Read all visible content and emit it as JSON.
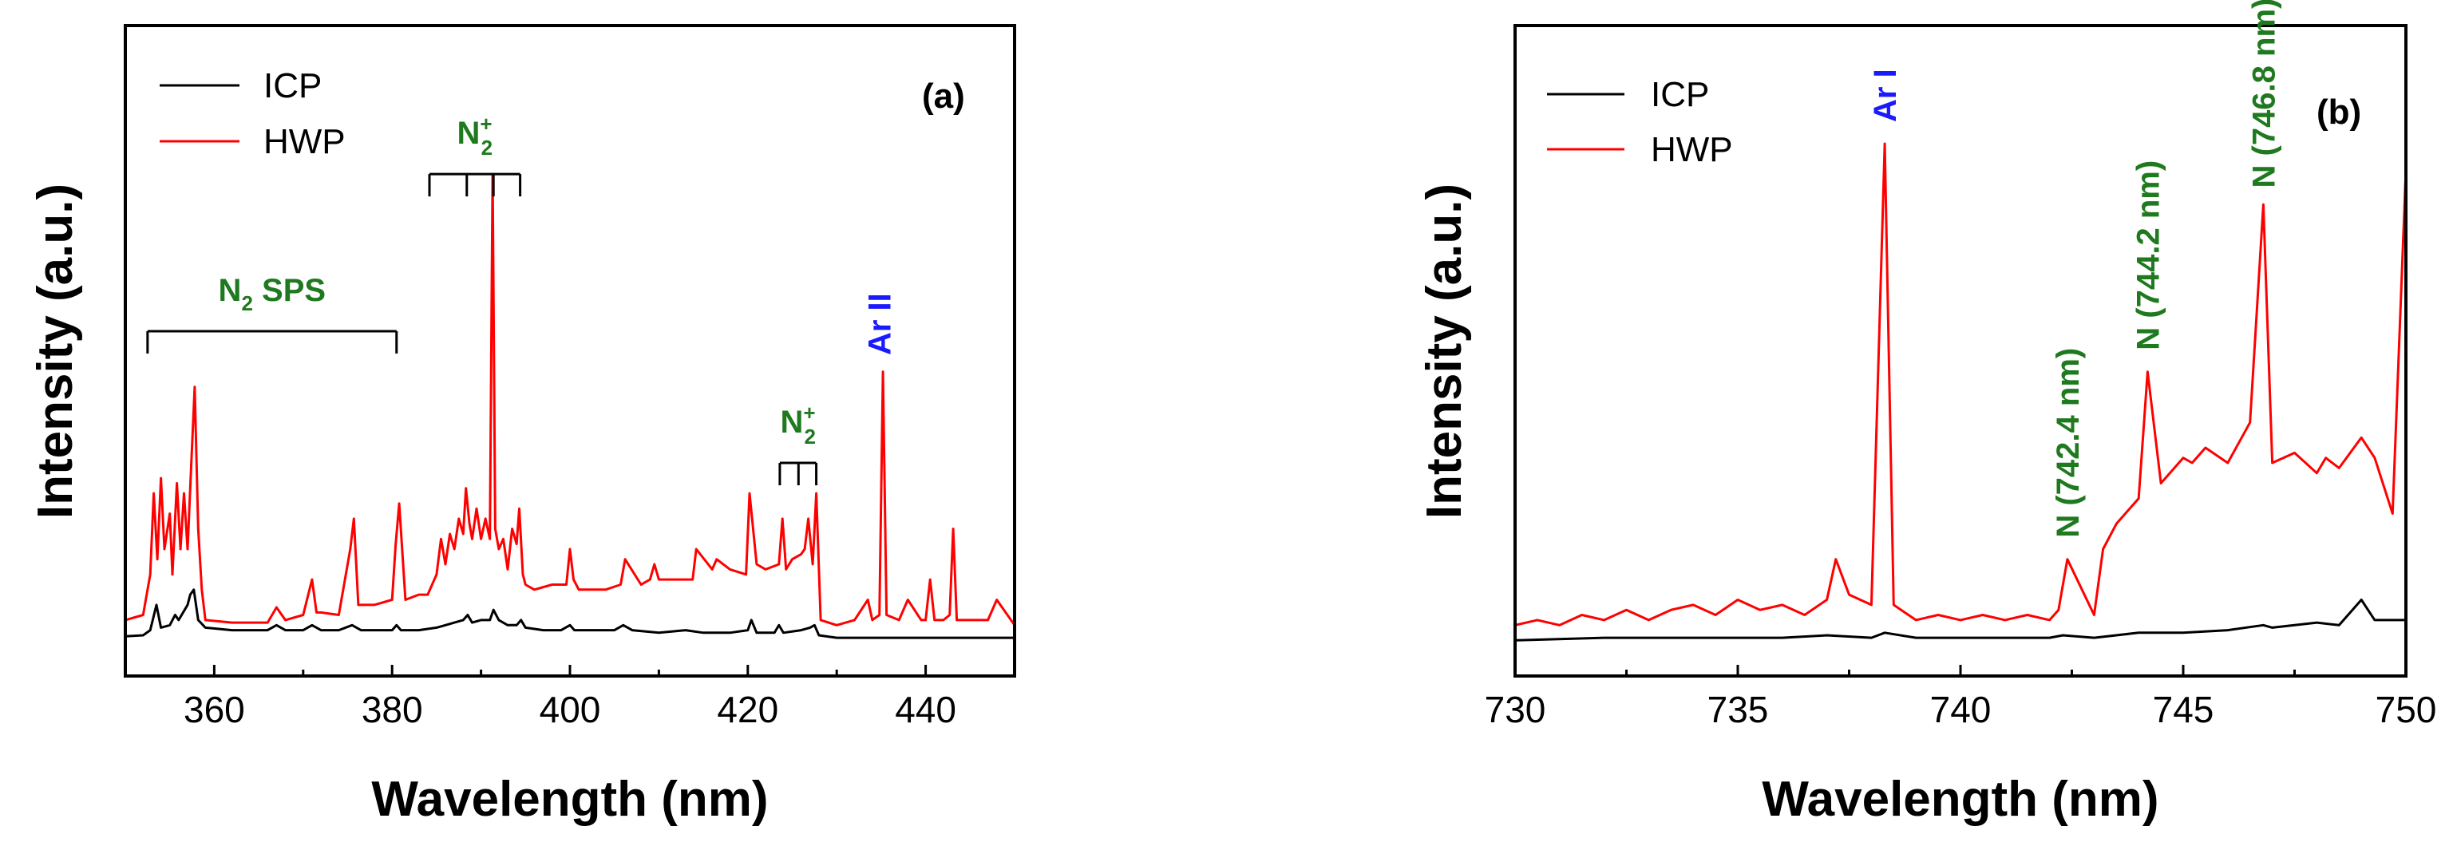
{
  "colors": {
    "icp": "#000000",
    "hwp": "#ff0000",
    "annotation_green": "#1f7a1f",
    "annotation_blue": "#1a1aff"
  },
  "chart_data": [
    {
      "type": "line",
      "panel_label": "(a)",
      "xlabel": "Wavelength (nm)",
      "ylabel": "Intensity (a.u.)",
      "xlim": [
        350,
        450
      ],
      "ylim": [
        0,
        1
      ],
      "x_ticks": [
        360,
        380,
        400,
        420,
        440
      ],
      "y_ticks_shown": false,
      "legend": {
        "position": "top-left",
        "entries": [
          "ICP",
          "HWP"
        ]
      },
      "series": [
        {
          "name": "ICP",
          "x": [
            350,
            352,
            352.8,
            353.5,
            354,
            355,
            355.6,
            356,
            356.5,
            357,
            357.3,
            357.7,
            358.2,
            359,
            362,
            366,
            367,
            368,
            370,
            371,
            372,
            374,
            375.5,
            376.5,
            378,
            380,
            380.5,
            381,
            383,
            385,
            386,
            387,
            388,
            388.5,
            389,
            390,
            391,
            391.4,
            392,
            393,
            394,
            394.5,
            395,
            397,
            399,
            400,
            400.5,
            402,
            405,
            406,
            407,
            410,
            413,
            415,
            418,
            420,
            420.4,
            421,
            423,
            423.5,
            424,
            426,
            427,
            427.5,
            428,
            430,
            435,
            440,
            445,
            450
          ],
          "values": [
            0.028,
            0.03,
            0.04,
            0.09,
            0.045,
            0.05,
            0.07,
            0.06,
            0.075,
            0.09,
            0.11,
            0.12,
            0.06,
            0.045,
            0.04,
            0.04,
            0.05,
            0.04,
            0.04,
            0.05,
            0.04,
            0.04,
            0.05,
            0.04,
            0.04,
            0.04,
            0.05,
            0.04,
            0.04,
            0.045,
            0.05,
            0.055,
            0.06,
            0.07,
            0.055,
            0.06,
            0.06,
            0.08,
            0.06,
            0.05,
            0.05,
            0.06,
            0.045,
            0.04,
            0.04,
            0.05,
            0.04,
            0.04,
            0.04,
            0.05,
            0.04,
            0.035,
            0.04,
            0.035,
            0.035,
            0.04,
            0.06,
            0.035,
            0.035,
            0.05,
            0.035,
            0.04,
            0.045,
            0.05,
            0.03,
            0.025,
            0.025,
            0.025,
            0.025,
            0.025
          ]
        },
        {
          "name": "HWP",
          "x": [
            350,
            352,
            352.8,
            353.2,
            353.6,
            354,
            354.4,
            355,
            355.3,
            355.8,
            356.2,
            356.6,
            357,
            357.4,
            357.8,
            358.2,
            358.6,
            359,
            362,
            366,
            367,
            368,
            370,
            371,
            371.5,
            372,
            374,
            375.3,
            375.7,
            376.2,
            378,
            380,
            380.4,
            380.8,
            381.5,
            383,
            384,
            385,
            385.5,
            386,
            386.5,
            387,
            387.5,
            388,
            388.3,
            388.7,
            389,
            389.5,
            390,
            390.5,
            391,
            391.3,
            391.6,
            392,
            392.5,
            393,
            393.5,
            394,
            394.3,
            394.7,
            395,
            396,
            398,
            399.6,
            400,
            400.4,
            401,
            404,
            405.7,
            406.2,
            408,
            409,
            409.5,
            410,
            412,
            413.8,
            414.2,
            416,
            416.5,
            418,
            419.8,
            420.2,
            421,
            422,
            423.5,
            423.9,
            424.3,
            425,
            426,
            426.4,
            426.8,
            427.3,
            427.7,
            428.2,
            430,
            432,
            433.5,
            434,
            434.8,
            435.2,
            435.6,
            437,
            438,
            439.5,
            440,
            440.5,
            441,
            442,
            442.7,
            443.1,
            443.5,
            445,
            447,
            448,
            450
          ],
          "values": [
            0.06,
            0.07,
            0.15,
            0.31,
            0.18,
            0.34,
            0.2,
            0.27,
            0.15,
            0.33,
            0.2,
            0.31,
            0.2,
            0.36,
            0.52,
            0.24,
            0.12,
            0.06,
            0.055,
            0.055,
            0.085,
            0.06,
            0.07,
            0.14,
            0.075,
            0.075,
            0.07,
            0.2,
            0.26,
            0.09,
            0.09,
            0.1,
            0.21,
            0.29,
            0.1,
            0.11,
            0.11,
            0.15,
            0.22,
            0.17,
            0.23,
            0.2,
            0.26,
            0.23,
            0.32,
            0.25,
            0.22,
            0.28,
            0.22,
            0.26,
            0.22,
            0.94,
            0.24,
            0.2,
            0.22,
            0.16,
            0.24,
            0.21,
            0.28,
            0.15,
            0.13,
            0.12,
            0.13,
            0.13,
            0.2,
            0.14,
            0.12,
            0.12,
            0.13,
            0.18,
            0.13,
            0.14,
            0.17,
            0.14,
            0.14,
            0.14,
            0.2,
            0.16,
            0.18,
            0.16,
            0.15,
            0.31,
            0.17,
            0.16,
            0.17,
            0.26,
            0.16,
            0.18,
            0.19,
            0.2,
            0.26,
            0.17,
            0.31,
            0.06,
            0.05,
            0.06,
            0.1,
            0.06,
            0.07,
            0.55,
            0.07,
            0.06,
            0.1,
            0.06,
            0.06,
            0.14,
            0.06,
            0.06,
            0.07,
            0.24,
            0.06,
            0.06,
            0.06,
            0.1,
            0.05
          ]
        }
      ],
      "annotations": [
        {
          "text": "N",
          "sub": "2",
          "suffix": " SPS",
          "color": "green",
          "bracket_x": [
            352.5,
            380.5
          ],
          "ticks_at": [
            352.5,
            380.5
          ],
          "bracket_y": 0.63
        },
        {
          "text": "N",
          "sub": "2",
          "sup": "+",
          "color": "green",
          "bracket_x": [
            384.2,
            394.4
          ],
          "ticks_at": [
            384.2,
            388.4,
            391.4,
            394.4
          ],
          "bracket_y": 0.94
        },
        {
          "text": "N",
          "sub": "2",
          "sup": "+",
          "color": "green",
          "bracket_x": [
            423.6,
            427.7
          ],
          "ticks_at": [
            423.6,
            425.7,
            427.7
          ],
          "bracket_y": 0.37
        },
        {
          "text": "Ar II",
          "color": "blue",
          "x": 434.8,
          "y": 0.57,
          "vertical": true
        }
      ]
    },
    {
      "type": "line",
      "panel_label": "(b)",
      "xlabel": "Wavelength (nm)",
      "ylabel": "Intensity (a.u.)",
      "xlim": [
        730,
        750
      ],
      "ylim": [
        0,
        1
      ],
      "x_ticks": [
        730,
        735,
        740,
        745,
        750
      ],
      "y_ticks_shown": false,
      "legend": {
        "position": "top-left",
        "entries": [
          "ICP",
          "HWP"
        ]
      },
      "series": [
        {
          "name": "ICP",
          "x": [
            730,
            732,
            734,
            736,
            737,
            738,
            738.3,
            739,
            740,
            742,
            742.3,
            743,
            744,
            745,
            746,
            746.8,
            747,
            748,
            748.5,
            749,
            749.3,
            749.7,
            750
          ],
          "values": [
            0.02,
            0.025,
            0.025,
            0.025,
            0.03,
            0.025,
            0.035,
            0.025,
            0.025,
            0.025,
            0.03,
            0.025,
            0.035,
            0.035,
            0.04,
            0.05,
            0.045,
            0.055,
            0.05,
            0.1,
            0.06,
            0.06,
            0.06
          ]
        },
        {
          "name": "HWP",
          "x": [
            730,
            730.5,
            731,
            731.5,
            732,
            732.5,
            733,
            733.5,
            734,
            734.5,
            735,
            735.5,
            736,
            736.5,
            737,
            737.2,
            737.5,
            738,
            738.3,
            738.5,
            739,
            739.5,
            740,
            740.5,
            741,
            741.5,
            742,
            742.2,
            742.4,
            743,
            743.2,
            743.5,
            744,
            744.2,
            744.5,
            745,
            745.2,
            745.5,
            746,
            746.5,
            746.8,
            747,
            747.5,
            748,
            748.2,
            748.5,
            749,
            749.3,
            749.7,
            750
          ],
          "values": [
            0.05,
            0.06,
            0.05,
            0.07,
            0.06,
            0.08,
            0.06,
            0.08,
            0.09,
            0.07,
            0.1,
            0.08,
            0.09,
            0.07,
            0.1,
            0.18,
            0.11,
            0.09,
            1.0,
            0.09,
            0.06,
            0.07,
            0.06,
            0.07,
            0.06,
            0.07,
            0.06,
            0.08,
            0.18,
            0.07,
            0.2,
            0.25,
            0.3,
            0.55,
            0.33,
            0.38,
            0.37,
            0.4,
            0.37,
            0.45,
            0.88,
            0.37,
            0.39,
            0.35,
            0.38,
            0.36,
            0.42,
            0.38,
            0.27,
            0.95
          ]
        }
      ],
      "annotations": [
        {
          "text": "Ar I",
          "color": "blue",
          "x": 738.3,
          "y": 1.03,
          "vertical": true
        },
        {
          "text": "N (742.4 nm)",
          "color": "green",
          "x": 742.4,
          "y": 0.21,
          "vertical": true
        },
        {
          "text": "N (744.2 nm)",
          "color": "green",
          "x": 744.2,
          "y": 0.58,
          "vertical": true
        },
        {
          "text": "N (746.8 nm)",
          "color": "green",
          "x": 746.8,
          "y": 0.9,
          "vertical": true
        }
      ]
    }
  ]
}
